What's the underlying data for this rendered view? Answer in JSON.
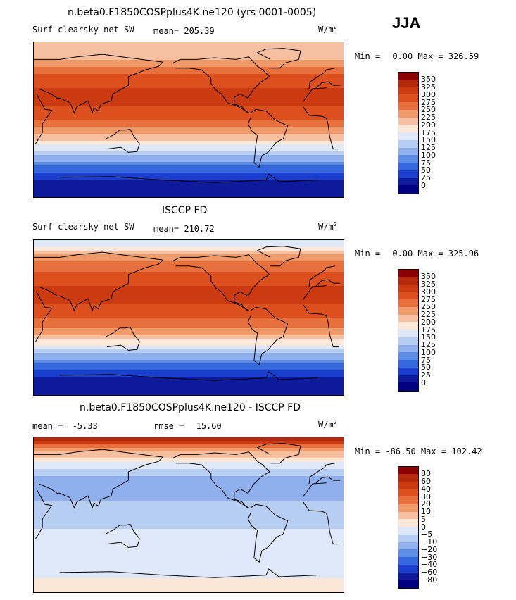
{
  "season": "JJA",
  "panels": [
    {
      "title": "n.beta0.F1850COSPplus4K.ne120 (yrs 0001-0005)",
      "left_label": "Surf clearsky net SW",
      "stat_label": "mean=",
      "stat_value": "205.39",
      "stat2_label": "",
      "stat2_value": "",
      "units": "W/m",
      "units_exp": "2",
      "min_label": "Min =",
      "min_value": "0.00",
      "max_label": "Max =",
      "max_value": "326.59"
    },
    {
      "title": "ISCCP FD",
      "left_label": "Surf clearsky net SW",
      "stat_label": "mean=",
      "stat_value": "210.72",
      "stat2_label": "",
      "stat2_value": "",
      "units": "W/m",
      "units_exp": "2",
      "min_label": "Min =",
      "min_value": "0.00",
      "max_label": "Max =",
      "max_value": "325.96"
    },
    {
      "title": "n.beta0.F1850COSPplus4K.ne120 - ISCCP FD",
      "left_label": "mean =",
      "stat_label": "",
      "stat_value": "-5.33",
      "stat2_label": "rmse =",
      "stat2_value": "15.60",
      "units": "W/m",
      "units_exp": "2",
      "min_label": "Min =",
      "min_value": "-86.50",
      "max_label": "Max =",
      "max_value": "102.42"
    }
  ],
  "chart_data": [
    {
      "type": "heatmap",
      "title": "n.beta0.F1850COSPplus4K.ne120 (yrs 0001-0005)",
      "variable": "Surf clearsky net SW",
      "units": "W/m2",
      "mean": 205.39,
      "min": 0.0,
      "max": 326.59,
      "colorbar_levels": [
        "350",
        "325",
        "300",
        "275",
        "250",
        "225",
        "200",
        "175",
        "150",
        "125",
        "100",
        "75",
        "50",
        "25",
        "0"
      ],
      "colorbar_colors": [
        "#8b0000",
        "#b22a0a",
        "#cc3a12",
        "#dc5020",
        "#e8703c",
        "#f09a6a",
        "#f6c0a0",
        "#fce6d8",
        "#dfe8f8",
        "#b8cdf2",
        "#8fb0ec",
        "#5d8ee6",
        "#3468dc",
        "#1a3fcf",
        "#0d1a9a",
        "#000080"
      ],
      "zonal_profile": {
        "lat": [
          90,
          75,
          60,
          45,
          30,
          15,
          0,
          -15,
          -30,
          -45,
          -60,
          -75,
          -90
        ],
        "value": [
          200,
          215,
          255,
          290,
          310,
          300,
          275,
          235,
          175,
          110,
          55,
          15,
          0
        ]
      }
    },
    {
      "type": "heatmap",
      "title": "ISCCP FD",
      "variable": "Surf clearsky net SW",
      "units": "W/m2",
      "mean": 210.72,
      "min": 0.0,
      "max": 325.96,
      "colorbar_levels": [
        "350",
        "325",
        "300",
        "275",
        "250",
        "225",
        "200",
        "175",
        "150",
        "125",
        "100",
        "75",
        "50",
        "25",
        "0"
      ],
      "colorbar_colors": [
        "#8b0000",
        "#b22a0a",
        "#cc3a12",
        "#dc5020",
        "#e8703c",
        "#f09a6a",
        "#f6c0a0",
        "#fce6d8",
        "#dfe8f8",
        "#b8cdf2",
        "#8fb0ec",
        "#5d8ee6",
        "#3468dc",
        "#1a3fcf",
        "#0d1a9a",
        "#000080"
      ],
      "zonal_profile": {
        "lat": [
          90,
          75,
          60,
          45,
          30,
          15,
          0,
          -15,
          -30,
          -45,
          -60,
          -75,
          -90
        ],
        "value": [
          140,
          220,
          260,
          290,
          305,
          300,
          280,
          240,
          180,
          110,
          55,
          10,
          0
        ]
      }
    },
    {
      "type": "heatmap",
      "title": "n.beta0.F1850COSPplus4K.ne120 - ISCCP FD",
      "variable": "Surf clearsky net SW difference",
      "units": "W/m2",
      "mean": -5.33,
      "rmse": 15.6,
      "min": -86.5,
      "max": 102.42,
      "colorbar_levels": [
        "80",
        "60",
        "40",
        "30",
        "20",
        "10",
        "5",
        "0",
        "−5",
        "−10",
        "−20",
        "−30",
        "−40",
        "−60",
        "−80"
      ],
      "colorbar_colors": [
        "#8b0000",
        "#b22a0a",
        "#cc3a12",
        "#dc5020",
        "#e8703c",
        "#f09a6a",
        "#f6c0a0",
        "#fce6d8",
        "#dfe8f8",
        "#b8cdf2",
        "#8fb0ec",
        "#5d8ee6",
        "#3468dc",
        "#1a3fcf",
        "#0d1a9a",
        "#000080"
      ],
      "zonal_profile": {
        "lat": [
          90,
          75,
          60,
          45,
          30,
          15,
          0,
          -15,
          -30,
          -45,
          -60,
          -75,
          -90
        ],
        "value": [
          70,
          10,
          0,
          -10,
          -15,
          -10,
          -8,
          -5,
          -3,
          -5,
          -3,
          0,
          0
        ]
      }
    }
  ]
}
